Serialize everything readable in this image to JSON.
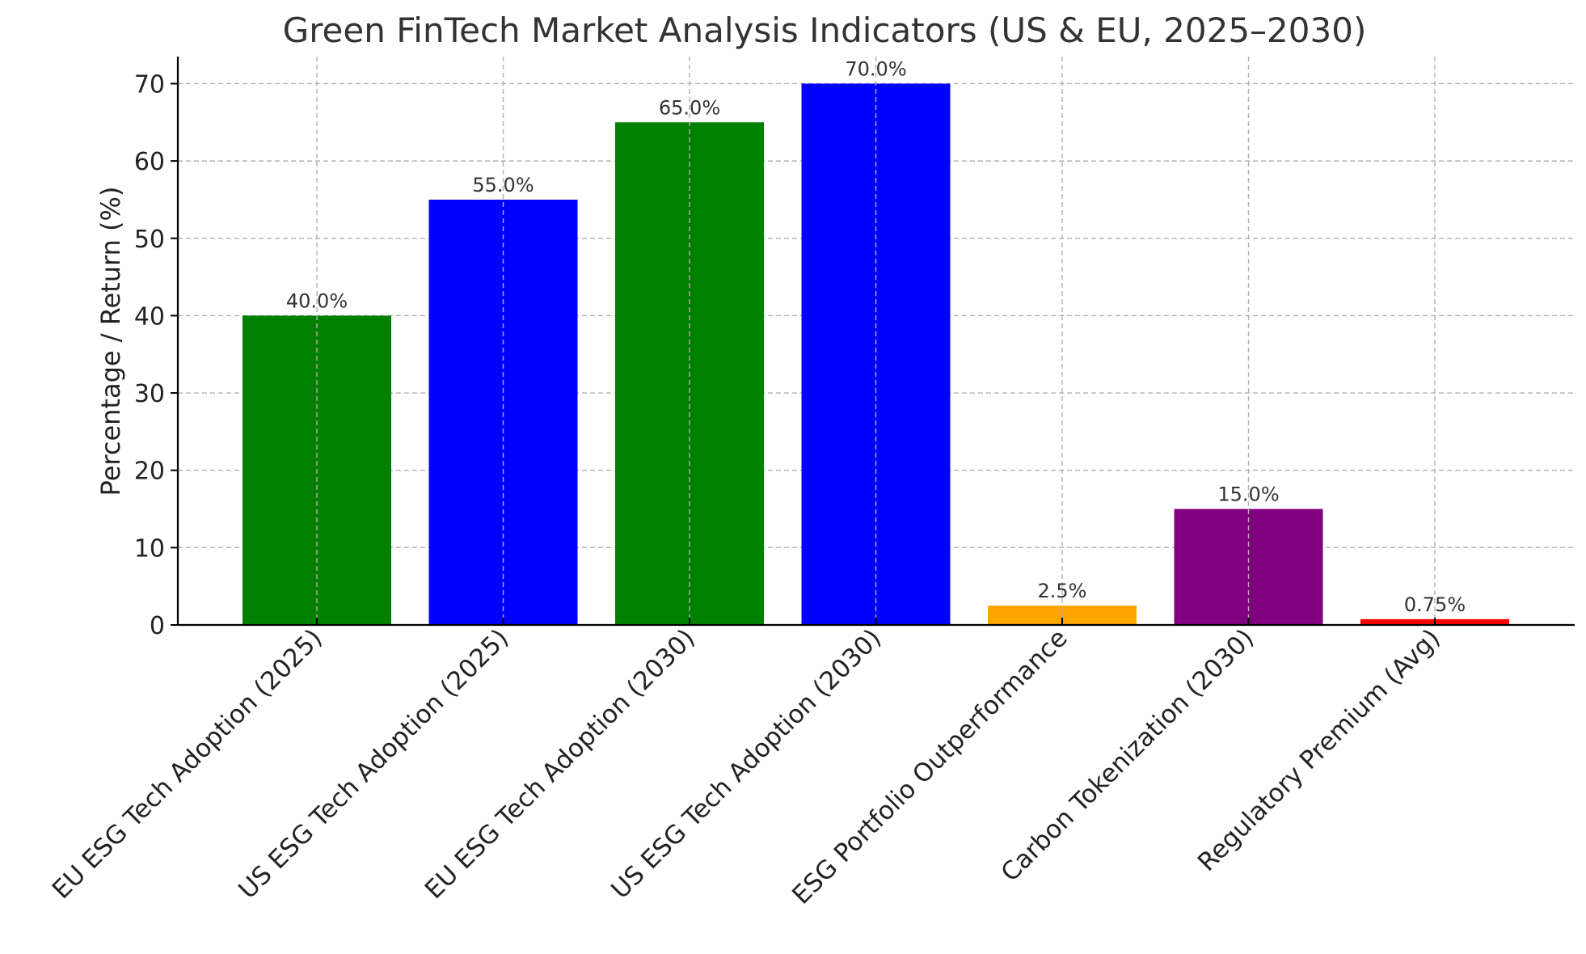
{
  "chart_data": {
    "type": "bar",
    "title": "Green FinTech Market Analysis Indicators (US & EU, 2025–2030)",
    "xlabel": "",
    "ylabel": "Percentage / Return (%)",
    "ylim": [
      0,
      73.5
    ],
    "yticks": [
      0,
      10,
      20,
      30,
      40,
      50,
      60,
      70
    ],
    "grid": true,
    "categories": [
      "EU ESG Tech Adoption (2025)",
      "US ESG Tech Adoption (2025)",
      "EU ESG Tech Adoption (2030)",
      "US ESG Tech Adoption (2030)",
      "ESG Portfolio Outperformance",
      "Carbon Tokenization (2030)",
      "Regulatory Premium (Avg)"
    ],
    "values": [
      40.0,
      55.0,
      65.0,
      70.0,
      2.5,
      15.0,
      0.75
    ],
    "data_labels": [
      "40.0%",
      "55.0%",
      "65.0%",
      "70.0%",
      "2.5%",
      "15.0%",
      "0.75%"
    ],
    "colors": [
      "#008000",
      "#0000ff",
      "#008000",
      "#0000ff",
      "#ffa500",
      "#800080",
      "#ff0000"
    ]
  }
}
